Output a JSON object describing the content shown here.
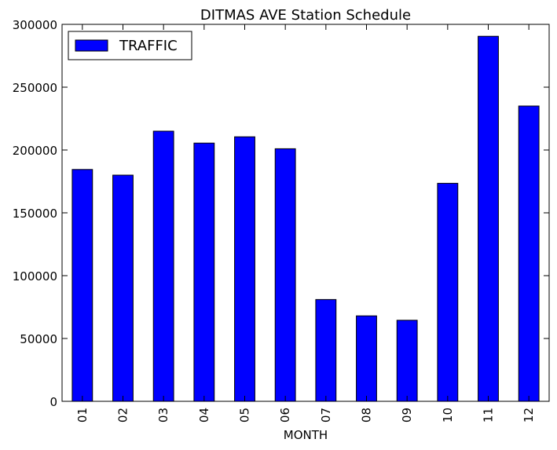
{
  "chart_data": {
    "type": "bar",
    "title": "DITMAS AVE Station Schedule",
    "xlabel": "MONTH",
    "ylabel": "",
    "categories": [
      "01",
      "02",
      "03",
      "04",
      "05",
      "06",
      "07",
      "08",
      "09",
      "10",
      "11",
      "12"
    ],
    "series": [
      {
        "name": "TRAFFIC",
        "color": "#0000ff",
        "values": [
          184500,
          180000,
          215000,
          205500,
          210500,
          201000,
          81000,
          68000,
          64500,
          173500,
          290500,
          235000
        ]
      }
    ],
    "ylim": [
      0,
      300000
    ],
    "yticks": [
      "0",
      "50000",
      "100000",
      "150000",
      "200000",
      "250000",
      "300000"
    ],
    "grid": false,
    "legend_position": "top-left",
    "bar_edge_color": "#000000"
  }
}
